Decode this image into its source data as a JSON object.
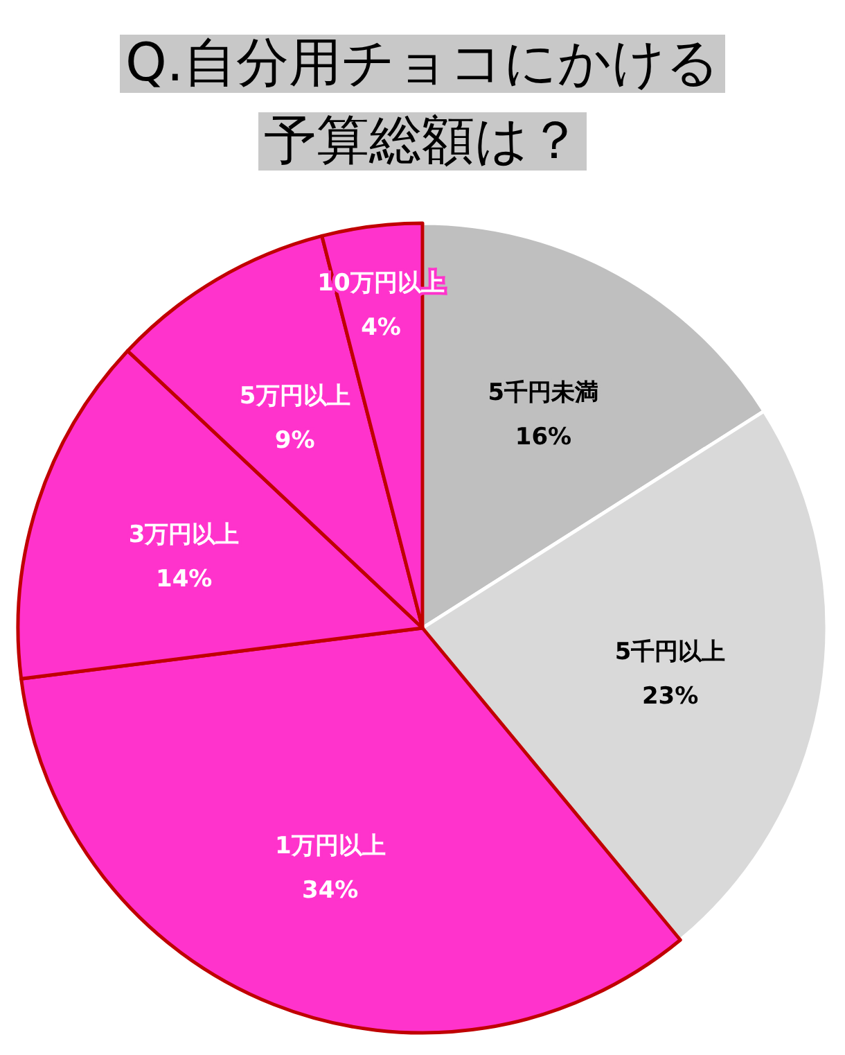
{
  "chart_data": {
    "type": "pie",
    "title": "Q.自分用チョコにかける予算総額は？",
    "categories": [
      "5千円未満",
      "5千円以上",
      "1万円以上",
      "3万円以上",
      "5万円以上",
      "10万円以上"
    ],
    "values": [
      16,
      23,
      34,
      14,
      9,
      4
    ],
    "value_labels": [
      "16%",
      "23%",
      "34%",
      "14%",
      "9%",
      "4%"
    ],
    "colors": [
      "#bfbfbf",
      "#d9d9d9",
      "#ff33cc",
      "#ff33cc",
      "#ff33cc",
      "#ff33cc"
    ]
  }
}
